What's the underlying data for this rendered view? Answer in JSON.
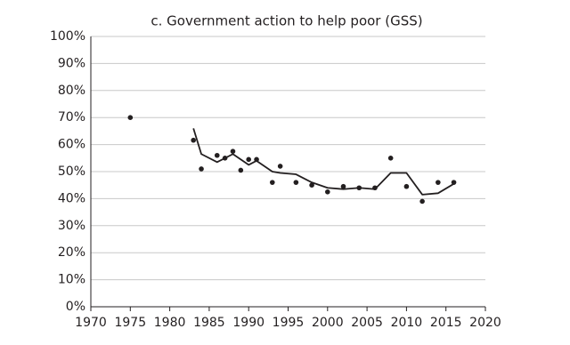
{
  "chart_data": {
    "type": "scatter",
    "title": "c. Government action to help poor (GSS)",
    "xlim": [
      1970,
      2020
    ],
    "xticks": [
      1970,
      1975,
      1980,
      1985,
      1990,
      1995,
      2000,
      2005,
      2010,
      2015,
      2020
    ],
    "ylim": [
      0,
      100
    ],
    "yticks": [
      {
        "value": 0,
        "label": "0%"
      },
      {
        "value": 10,
        "label": "10%"
      },
      {
        "value": 20,
        "label": "20%"
      },
      {
        "value": 30,
        "label": "30%"
      },
      {
        "value": 40,
        "label": "40%"
      },
      {
        "value": 50,
        "label": "50%"
      },
      {
        "value": 60,
        "label": "60%"
      },
      {
        "value": 70,
        "label": "70%"
      },
      {
        "value": 80,
        "label": "80%"
      },
      {
        "value": 90,
        "label": "90%"
      },
      {
        "value": 100,
        "label": "100%"
      }
    ],
    "grid": true,
    "series": [
      {
        "type": "scatter",
        "color": "#231f20",
        "x": [
          1975,
          1983,
          1984,
          1986,
          1987,
          1988,
          1989,
          1990,
          1991,
          1993,
          1994,
          1996,
          1998,
          2000,
          2002,
          2004,
          2006,
          2008,
          2010,
          2012,
          2014,
          2016
        ],
        "values": [
          70,
          61.6,
          51,
          56,
          55,
          57.5,
          50.5,
          54.5,
          54.5,
          46,
          52,
          46,
          45,
          42.5,
          44.5,
          44,
          44,
          55,
          44.5,
          39,
          46,
          46
        ]
      },
      {
        "type": "line",
        "color": "#231f20",
        "x": [
          1983,
          1984,
          1986,
          1988,
          1990,
          1991,
          1993,
          1994,
          1996,
          1998,
          2000,
          2002,
          2004,
          2006,
          2008,
          2010,
          2012,
          2014,
          2016
        ],
        "values": [
          66,
          56.5,
          53.5,
          56.5,
          52.5,
          54,
          50,
          49.5,
          49,
          46,
          44,
          43.5,
          44,
          43.5,
          49.5,
          49.5,
          41.5,
          42,
          45.5
        ]
      }
    ]
  }
}
